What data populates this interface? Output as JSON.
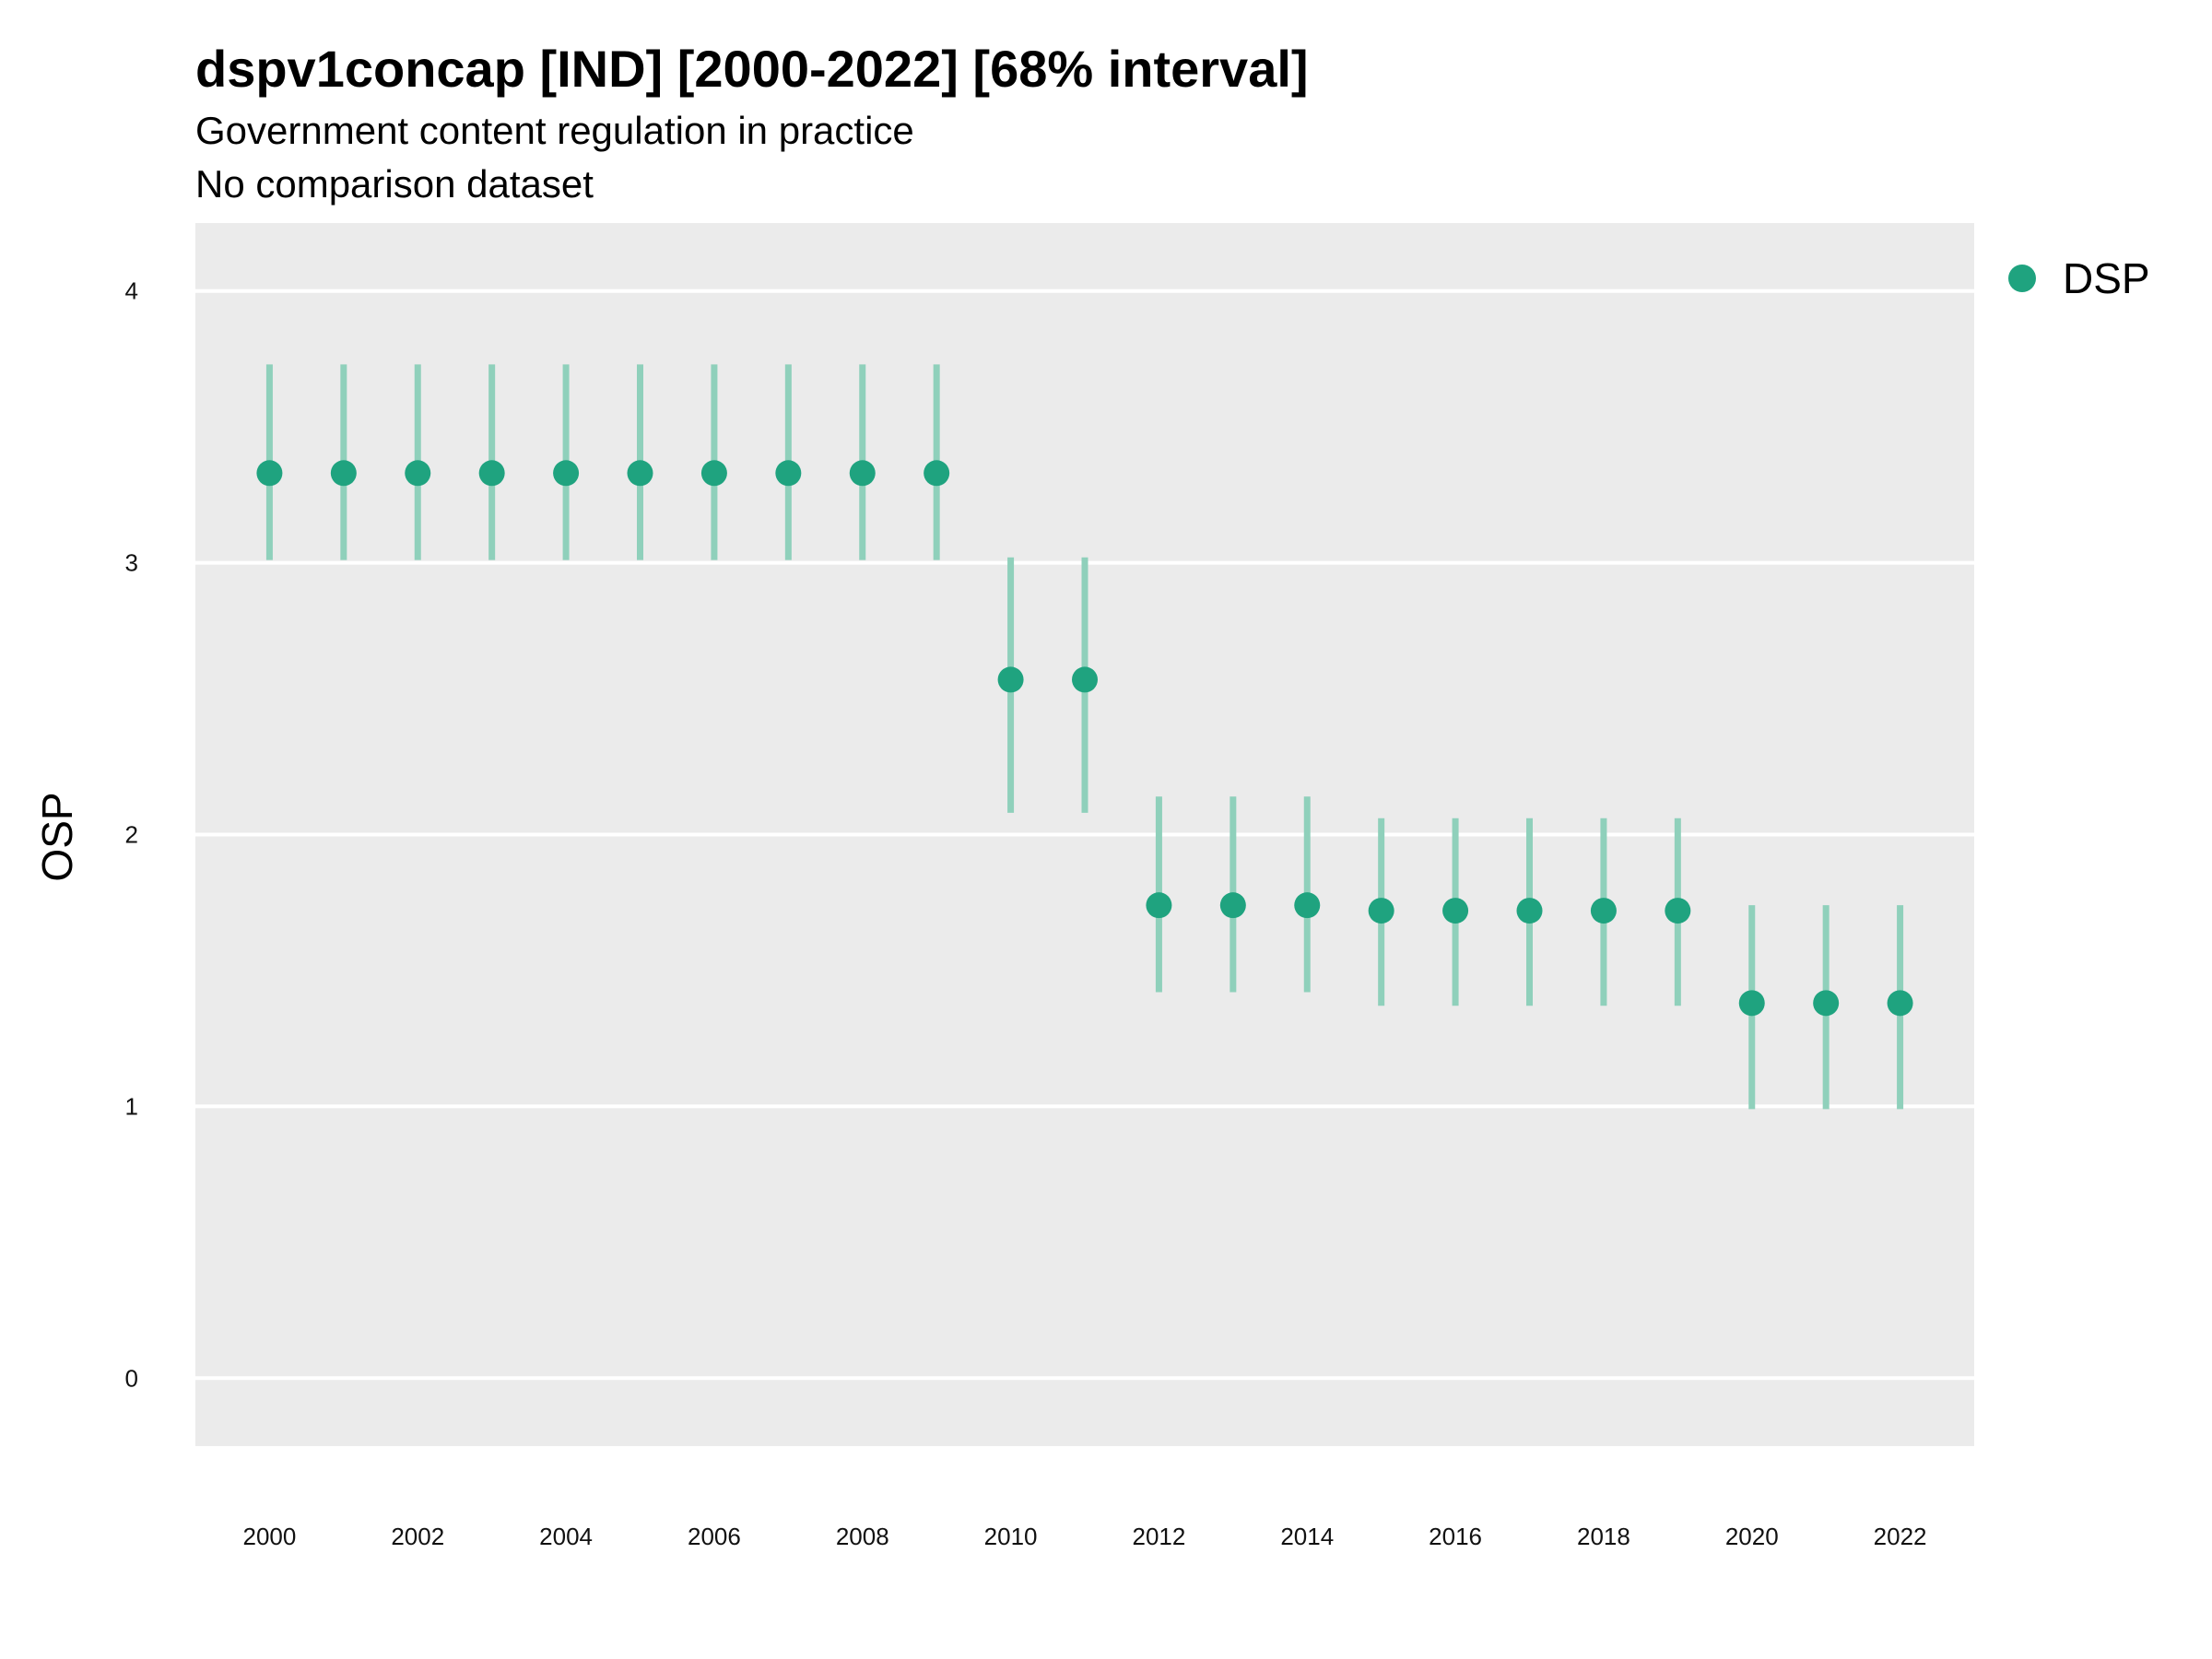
{
  "chart_data": {
    "type": "scatter",
    "title": "dspv1concap [IND] [2000-2022] [68% interval]",
    "subtitle_lines": [
      "Government content regulation in practice",
      "No comparison dataset"
    ],
    "xlabel": "",
    "ylabel": "OSP",
    "xlim": [
      1999,
      2023
    ],
    "ylim": [
      -0.25,
      4.25
    ],
    "y_ticks": [
      0,
      1,
      2,
      3,
      4
    ],
    "x_ticks": [
      2000,
      2002,
      2004,
      2006,
      2008,
      2010,
      2012,
      2014,
      2016,
      2018,
      2020,
      2022
    ],
    "grid": true,
    "legend_position": "top-right",
    "colors": {
      "point": "#1fa37f",
      "interval": "#8fd0bb",
      "panel": "#ebebeb",
      "grid": "#ffffff"
    },
    "series": [
      {
        "name": "DSP",
        "x": [
          2000,
          2001,
          2002,
          2003,
          2004,
          2005,
          2006,
          2007,
          2008,
          2009,
          2010,
          2011,
          2012,
          2013,
          2014,
          2015,
          2016,
          2017,
          2018,
          2019,
          2020,
          2021,
          2022
        ],
        "y": [
          3.33,
          3.33,
          3.33,
          3.33,
          3.33,
          3.33,
          3.33,
          3.33,
          3.33,
          3.33,
          2.57,
          2.57,
          1.74,
          1.74,
          1.74,
          1.72,
          1.72,
          1.72,
          1.72,
          1.72,
          1.38,
          1.38,
          1.38
        ],
        "lower": [
          3.01,
          3.01,
          3.01,
          3.01,
          3.01,
          3.01,
          3.01,
          3.01,
          3.01,
          3.01,
          2.08,
          2.08,
          1.42,
          1.42,
          1.42,
          1.37,
          1.37,
          1.37,
          1.37,
          1.37,
          0.99,
          0.99,
          0.99
        ],
        "upper": [
          3.73,
          3.73,
          3.73,
          3.73,
          3.73,
          3.73,
          3.73,
          3.73,
          3.73,
          3.73,
          3.02,
          3.02,
          2.14,
          2.14,
          2.14,
          2.06,
          2.06,
          2.06,
          2.06,
          2.06,
          1.74,
          1.74,
          1.74
        ]
      }
    ]
  }
}
